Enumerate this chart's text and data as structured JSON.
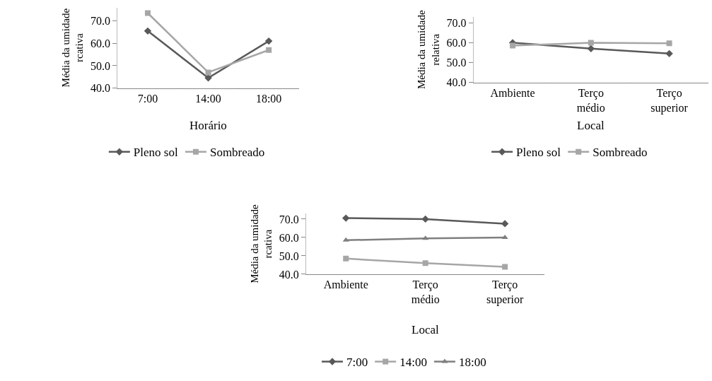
{
  "chart_data": [
    {
      "type": "line",
      "xlabel": "Horário",
      "ylabel": "Média da umidade\nrcativa",
      "categories": [
        "7:00",
        "14:00",
        "18:00"
      ],
      "series": [
        {
          "name": "Pleno sol",
          "color": "#595959",
          "marker": "diamond",
          "values": [
            65.5,
            44.5,
            61
          ]
        },
        {
          "name": "Sombreado",
          "color": "#a6a6a6",
          "marker": "square",
          "values": [
            73.5,
            47,
            57
          ]
        }
      ],
      "ylim": [
        40,
        76
      ],
      "yticks": [
        {
          "value": 40,
          "label": "40.0"
        },
        {
          "value": 50,
          "label": "50.0"
        },
        {
          "value": 60,
          "label": "60.0"
        },
        {
          "value": 70,
          "label": "70.0"
        }
      ],
      "legend": "bottom"
    },
    {
      "type": "line",
      "xlabel": "Local",
      "ylabel": "Média da umidade\nrelativa",
      "categories": [
        "Ambiente",
        "Terço\nmédio",
        "Terço\nsuperior"
      ],
      "series": [
        {
          "name": "Pleno sol",
          "color": "#595959",
          "marker": "diamond",
          "values": [
            60,
            57,
            54.5
          ]
        },
        {
          "name": "Sombreado",
          "color": "#a6a6a6",
          "marker": "square",
          "values": [
            58.5,
            60,
            59.7
          ]
        }
      ],
      "ylim": [
        40,
        73
      ],
      "yticks": [
        {
          "value": 40,
          "label": "40.0"
        },
        {
          "value": 50,
          "label": "50.0"
        },
        {
          "value": 60,
          "label": "60.0"
        },
        {
          "value": 70,
          "label": "70.0"
        }
      ],
      "legend": "bottom"
    },
    {
      "type": "line",
      "xlabel": "Local",
      "ylabel": "Média da umidade\nrcativa",
      "categories": [
        "Ambiente",
        "Terço\nmédio",
        "Terço\nsuperior"
      ],
      "series": [
        {
          "name": "7:00",
          "color": "#595959",
          "marker": "diamond",
          "values": [
            70.5,
            70,
            67.5
          ]
        },
        {
          "name": "14:00",
          "color": "#a6a6a6",
          "marker": "square",
          "values": [
            48.5,
            46,
            44
          ]
        },
        {
          "name": "18:00",
          "color": "#7f7f7f",
          "marker": "triangle",
          "values": [
            58.5,
            59.5,
            60
          ]
        }
      ],
      "ylim": [
        40,
        73
      ],
      "yticks": [
        {
          "value": 40,
          "label": "40.0"
        },
        {
          "value": 50,
          "label": "50.0"
        },
        {
          "value": 60,
          "label": "60.0"
        },
        {
          "value": 70,
          "label": "70.0"
        }
      ],
      "legend": "bottom"
    }
  ]
}
